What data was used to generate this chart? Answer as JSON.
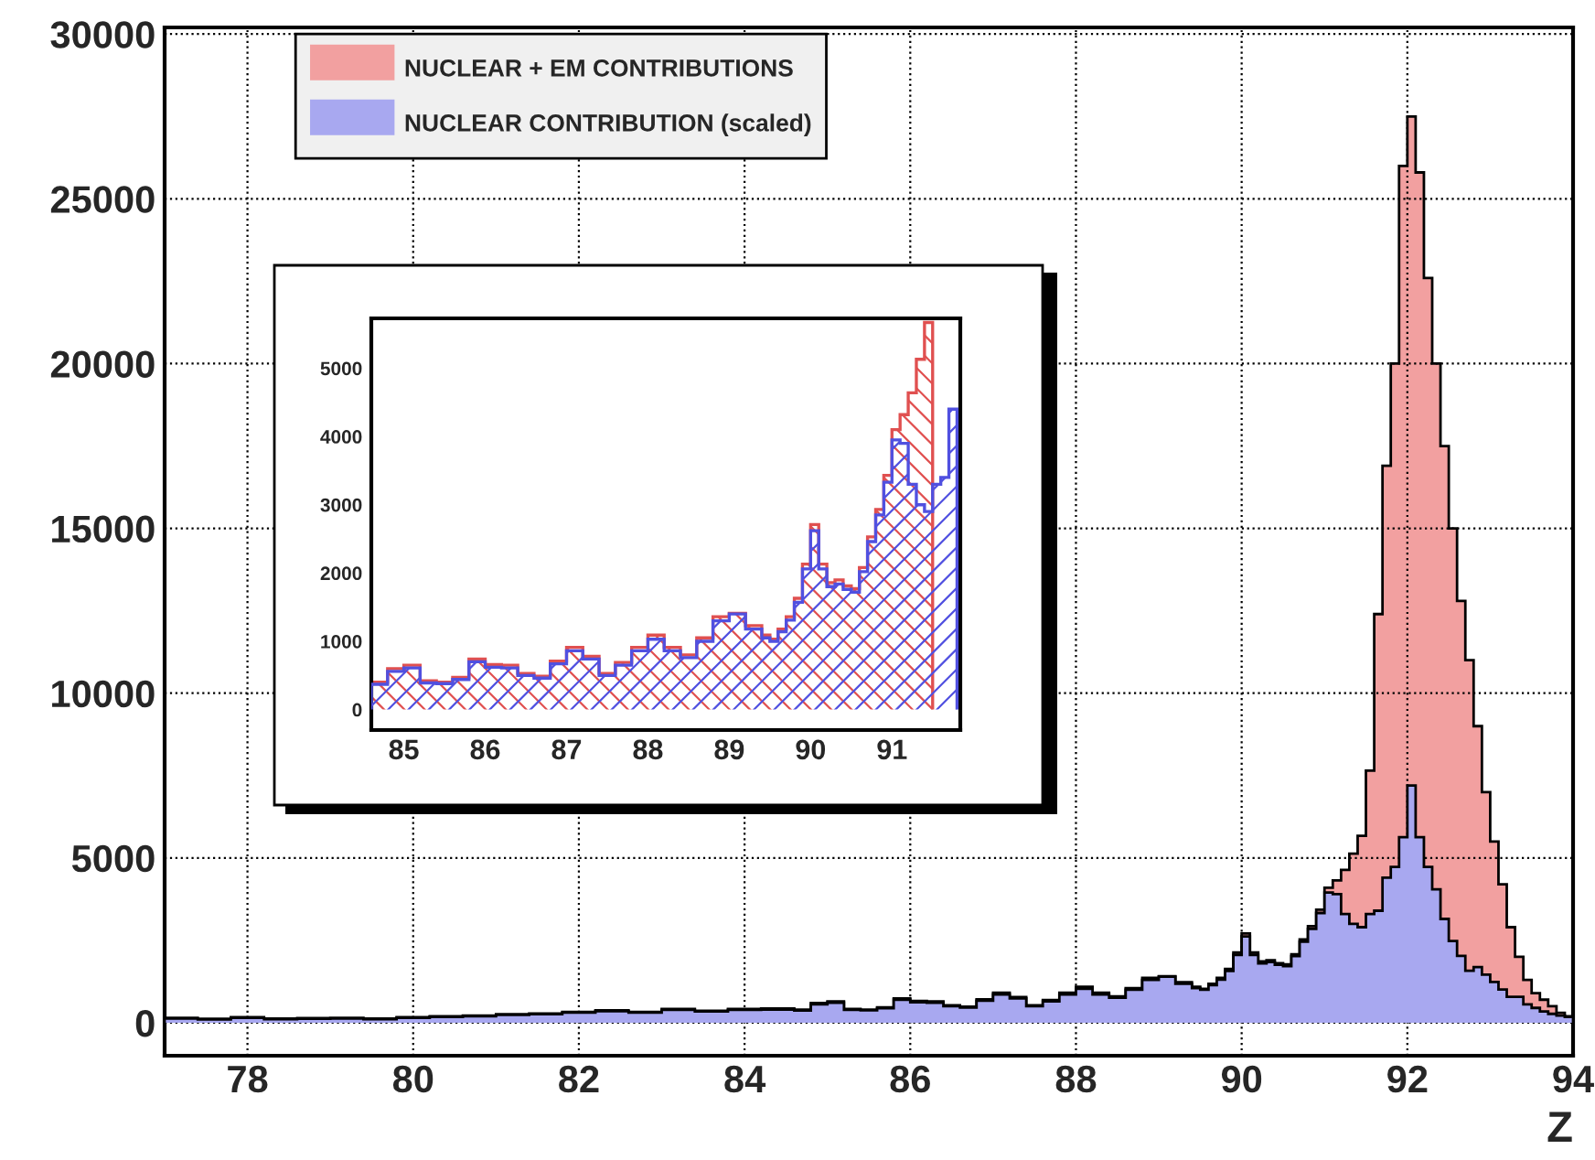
{
  "chart_data": [
    {
      "type": "histogram",
      "xlabel": "Z",
      "bins": [
        77,
        77.4,
        77.8,
        78.2,
        78.6,
        79,
        79.4,
        79.8,
        80.2,
        80.6,
        81,
        81.4,
        81.8,
        82.2,
        82.6,
        83,
        83.4,
        83.8,
        84.2,
        84.6,
        84.8,
        85,
        85.2,
        85.4,
        85.6,
        85.8,
        86,
        86.2,
        86.4,
        86.6,
        86.8,
        87,
        87.2,
        87.4,
        87.6,
        87.8,
        88,
        88.2,
        88.4,
        88.6,
        88.8,
        89,
        89.2,
        89.4,
        89.5,
        89.6,
        89.7,
        89.8,
        89.9,
        90,
        90.1,
        90.2,
        90.3,
        90.4,
        90.5,
        90.6,
        90.7,
        90.8,
        90.9,
        91,
        91.1,
        91.2,
        91.3,
        91.4,
        91.5,
        91.6,
        91.7,
        91.8,
        91.9,
        92,
        92.1,
        92.2,
        92.3,
        92.4,
        92.5,
        92.6,
        92.7,
        92.8,
        92.9,
        93,
        93.1,
        93.2,
        93.3,
        93.4,
        93.5,
        93.6,
        93.7,
        93.8,
        93.9,
        94
      ],
      "series": [
        {
          "name": "NUCLEAR + EM CONTRIBUTIONS",
          "color": "#f2a0a0",
          "values": [
            150,
            120,
            170,
            130,
            140,
            150,
            130,
            170,
            200,
            220,
            260,
            280,
            330,
            380,
            330,
            420,
            360,
            420,
            430,
            400,
            600,
            650,
            420,
            400,
            470,
            740,
            660,
            650,
            530,
            490,
            710,
            910,
            780,
            530,
            690,
            910,
            1090,
            910,
            800,
            1050,
            1360,
            1410,
            1230,
            1090,
            1030,
            1180,
            1360,
            1630,
            2130,
            2710,
            2130,
            1860,
            1900,
            1810,
            1770,
            2080,
            2530,
            2930,
            3430,
            4100,
            4320,
            4640,
            5130,
            5670,
            7650,
            12400,
            16900,
            20000,
            26000,
            27500,
            25800,
            22600,
            20000,
            17500,
            15000,
            12800,
            11000,
            9000,
            7000,
            5500,
            4200,
            2900,
            2000,
            1300,
            900,
            700,
            500,
            300,
            200
          ]
        },
        {
          "name": "NUCLEAR CONTRIBUTION (scaled)",
          "color": "#a8a8f0",
          "values": [
            130,
            100,
            150,
            110,
            120,
            130,
            110,
            150,
            180,
            200,
            240,
            260,
            310,
            350,
            310,
            390,
            340,
            390,
            400,
            370,
            560,
            610,
            390,
            380,
            440,
            700,
            620,
            610,
            500,
            460,
            670,
            860,
            740,
            500,
            650,
            860,
            1030,
            860,
            760,
            1000,
            1300,
            1400,
            1180,
            1050,
            1000,
            1140,
            1310,
            1570,
            2060,
            2620,
            2060,
            1800,
            1840,
            1760,
            1720,
            2020,
            2460,
            2850,
            3330,
            3950,
            3900,
            3300,
            3000,
            2900,
            3300,
            3400,
            4400,
            4730,
            5630,
            7200,
            5630,
            4730,
            4050,
            3150,
            2480,
            2030,
            1580,
            1690,
            1460,
            1240,
            1010,
            790,
            790,
            560,
            450,
            340,
            270,
            220,
            180
          ]
        }
      ],
      "xlim": [
        77,
        94
      ],
      "ylim": [
        -1000,
        30200
      ],
      "xticks": [
        78,
        80,
        82,
        84,
        86,
        88,
        90,
        92,
        94
      ],
      "yticks": [
        0,
        5000,
        10000,
        15000,
        20000,
        25000,
        30000
      ],
      "grid": true,
      "legend": "top left"
    },
    {
      "type": "histogram",
      "bins": [
        84.6,
        84.8,
        85,
        85.2,
        85.4,
        85.6,
        85.8,
        86,
        86.2,
        86.4,
        86.6,
        86.8,
        87,
        87.2,
        87.4,
        87.6,
        87.8,
        88,
        88.2,
        88.4,
        88.6,
        88.8,
        89,
        89.2,
        89.4,
        89.5,
        89.6,
        89.7,
        89.8,
        89.9,
        90,
        90.1,
        90.2,
        90.3,
        90.4,
        90.5,
        90.6,
        90.7,
        90.8,
        90.9,
        91,
        91.1,
        91.2,
        91.3,
        91.4,
        91.5,
        91.6,
        91.7,
        91.8
      ],
      "series": [
        {
          "color": "#e05050",
          "bins": [
            84.6,
            84.8,
            85,
            85.2,
            85.4,
            85.6,
            85.8,
            86,
            86.2,
            86.4,
            86.6,
            86.8,
            87,
            87.2,
            87.4,
            87.6,
            87.8,
            88,
            88.2,
            88.4,
            88.6,
            88.8,
            89,
            89.2,
            89.4,
            89.5,
            89.6,
            89.7,
            89.8,
            89.9,
            90,
            90.1,
            90.2,
            90.3,
            90.4,
            90.5,
            90.6,
            90.7,
            90.8,
            90.9,
            91,
            91.1,
            91.2,
            91.3,
            91.4,
            91.5
          ],
          "values": [
            400,
            600,
            650,
            420,
            400,
            470,
            740,
            660,
            650,
            530,
            490,
            710,
            910,
            780,
            530,
            690,
            910,
            1090,
            910,
            800,
            1050,
            1360,
            1410,
            1230,
            1090,
            1030,
            1180,
            1360,
            1630,
            2130,
            2710,
            2130,
            1860,
            1900,
            1810,
            1770,
            2080,
            2530,
            2930,
            3430,
            4100,
            4320,
            4640,
            5130,
            5670
          ]
        },
        {
          "color": "#5050e0",
          "values": [
            370,
            560,
            610,
            390,
            380,
            440,
            700,
            620,
            610,
            500,
            460,
            670,
            860,
            740,
            500,
            650,
            860,
            1030,
            860,
            760,
            1000,
            1300,
            1400,
            1180,
            1050,
            1000,
            1140,
            1310,
            1570,
            2060,
            2620,
            2060,
            1800,
            1840,
            1760,
            1720,
            2020,
            2460,
            2850,
            3330,
            3950,
            3900,
            3300,
            3000,
            2900,
            3300,
            3400,
            4400
          ]
        }
      ],
      "xlim": [
        84.6,
        91.84
      ],
      "ylim": [
        -300,
        5730
      ],
      "xticks": [
        85,
        86,
        87,
        88,
        89,
        90,
        91
      ],
      "yticks": [
        0,
        1000,
        2000,
        3000,
        4000,
        5000
      ],
      "grid": false
    }
  ]
}
